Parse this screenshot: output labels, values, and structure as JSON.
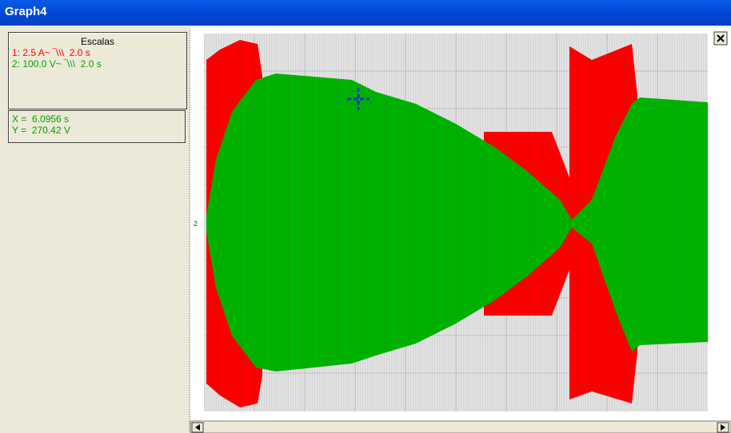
{
  "window": {
    "title": "Graph4"
  },
  "scales": {
    "heading": "Escalas",
    "channels": [
      "1: 2.5 A~ ‾\\\\\\  2.0 s",
      "2: 100.0 V~ ‾\\\\\\  2.0 s"
    ]
  },
  "cursor": {
    "x": "X =  6.0956 s",
    "y": "Y =  270.42 V"
  },
  "plot": {
    "channel_marker": "2"
  }
}
